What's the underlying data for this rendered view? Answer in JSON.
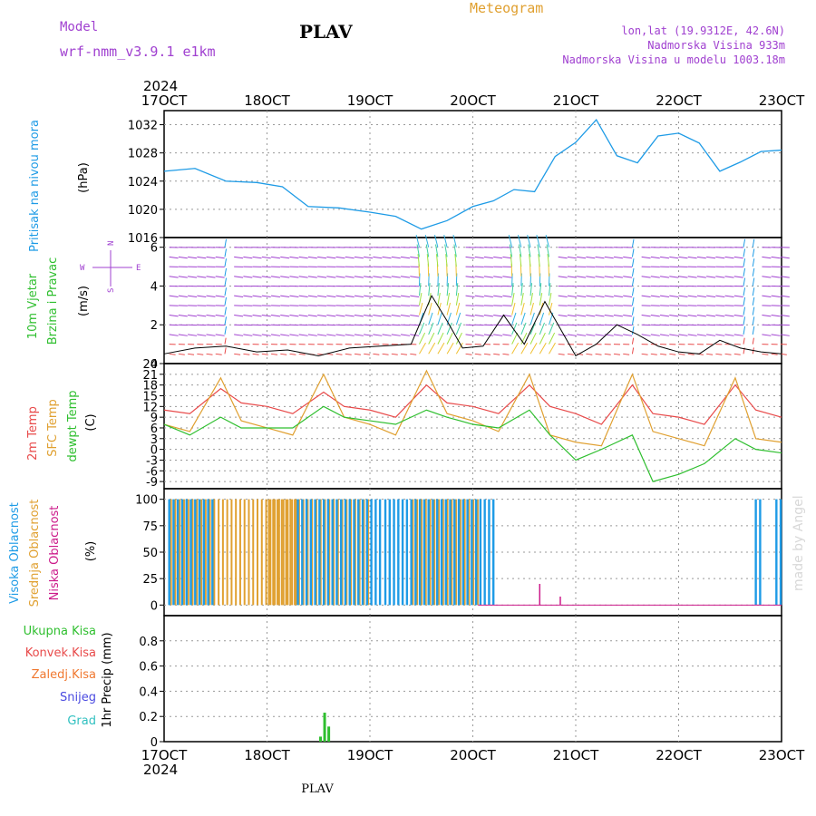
{
  "header": {
    "product": "Meteogram",
    "model_label": "Model",
    "model_name": "wrf-nmm_v3.9.1  e1km",
    "station": "PLAV",
    "lonlat": "lon,lat (19.9312E, 42.6N)",
    "altitude": "Nadmorska Visina 933m",
    "model_altitude": "Nadmorska Visina u modelu 1003.18m",
    "footer_station": "PLAV",
    "watermark": "made by Angel"
  },
  "colors": {
    "pressure": "#1e9be6",
    "temp2m": "#e84a4a",
    "sfc": "#e0a030",
    "dewpt": "#2fbf2f",
    "cloud_high": "#1e9be6",
    "cloud_mid": "#e0a030",
    "cloud_low": "#cc1a8a",
    "precip_total": "#2fbf2f",
    "purple": "#a040d0"
  },
  "time_axis": {
    "year": "2024",
    "ticks": [
      "17OCT",
      "18OCT",
      "19OCT",
      "20OCT",
      "21OCT",
      "22OCT",
      "23OCT"
    ]
  },
  "panel_labels": {
    "pressure": [
      "Pritisak na nivou mora",
      "(hPa)"
    ],
    "wind": [
      "10m Vjetar",
      "Brzina i Pravac",
      "(m/s)"
    ],
    "compass": {
      "n": "N",
      "e": "E",
      "w": "W",
      "s": "S"
    },
    "temp": [
      "2m Temp",
      "SFC Temp",
      "dewpt Temp",
      "(C)"
    ],
    "cloud": [
      "Visoka Oblacnost",
      "Srednja Oblacnost",
      "Niska Oblacnost",
      "(%)"
    ],
    "precip": [
      "Ukupna Kisa",
      "Konvek.Kisa",
      "Zaledj.Kisa",
      "Snijeg",
      "Grad"
    ],
    "precip_axis": "1hr Precip (mm)"
  },
  "chart_data": [
    {
      "type": "line",
      "series_name": "Pritisak na nivou mora",
      "ylabel": "(hPa)",
      "ylim": [
        1016,
        1034
      ],
      "yticks": [
        "1016",
        "1020",
        "1024",
        "1028",
        "1032"
      ],
      "x_days": [
        0,
        0.3,
        0.6,
        0.9,
        1.15,
        1.4,
        1.7,
        2.0,
        2.25,
        2.5,
        2.75,
        3.0,
        3.2,
        3.4,
        3.6,
        3.8,
        4.0,
        4.2,
        4.4,
        4.6,
        4.8,
        5.0,
        5.2,
        5.4,
        5.6,
        5.8,
        6.0
      ],
      "values": [
        1025.4,
        1025.8,
        1024.0,
        1023.8,
        1023.2,
        1020.4,
        1020.2,
        1019.6,
        1019.0,
        1017.2,
        1018.4,
        1020.4,
        1021.2,
        1022.8,
        1022.5,
        1027.5,
        1029.5,
        1032.7,
        1027.6,
        1026.6,
        1030.4,
        1030.8,
        1029.4,
        1025.4,
        1026.7,
        1028.2,
        1028.4
      ]
    },
    {
      "type": "line",
      "series_name": "10m Vjetar",
      "ylabel": "(m/s)",
      "ylim": [
        0,
        6.5
      ],
      "yticks": [
        "0",
        "2",
        "4",
        "6"
      ],
      "x_days": [
        0,
        0.3,
        0.6,
        0.9,
        1.2,
        1.5,
        1.8,
        2.1,
        2.4,
        2.6,
        2.75,
        2.9,
        3.1,
        3.3,
        3.5,
        3.7,
        3.85,
        4.0,
        4.2,
        4.4,
        4.6,
        4.8,
        5.0,
        5.2,
        5.4,
        5.6,
        5.8,
        6.0
      ],
      "values": [
        0.5,
        0.8,
        0.9,
        0.6,
        0.7,
        0.4,
        0.8,
        0.9,
        1.0,
        3.5,
        2.2,
        0.8,
        0.9,
        2.5,
        1.0,
        3.2,
        1.8,
        0.4,
        1.0,
        2.0,
        1.5,
        0.9,
        0.6,
        0.5,
        1.2,
        0.8,
        0.6,
        0.5
      ]
    },
    {
      "type": "line",
      "ylabel": "(C)",
      "ylim": [
        -11,
        24
      ],
      "yticks": [
        "24",
        "21",
        "18",
        "15",
        "12",
        "9",
        "6",
        "3",
        "0",
        "-3",
        "-6",
        "-9"
      ],
      "x_days": [
        0,
        0.25,
        0.55,
        0.75,
        1.0,
        1.25,
        1.55,
        1.75,
        2.0,
        2.25,
        2.55,
        2.75,
        3.0,
        3.25,
        3.55,
        3.75,
        4.0,
        4.25,
        4.55,
        4.75,
        5.0,
        5.25,
        5.55,
        5.75,
        6.0
      ],
      "series": [
        {
          "name": "2m Temp",
          "values": [
            11,
            10,
            17,
            13,
            12,
            10,
            16,
            12,
            11,
            9,
            18,
            13,
            12,
            10,
            18,
            12,
            10,
            7,
            18,
            10,
            9,
            7,
            18,
            11,
            9
          ]
        },
        {
          "name": "SFC Temp",
          "values": [
            7,
            5,
            20,
            8,
            6,
            4,
            21,
            9,
            7,
            4,
            22,
            10,
            8,
            5,
            21,
            4,
            2,
            1,
            21,
            5,
            3,
            1,
            20,
            3,
            2
          ]
        },
        {
          "name": "dewpt Temp",
          "values": [
            7,
            4,
            9,
            6,
            6,
            6,
            12,
            9,
            8,
            7,
            11,
            9,
            7,
            6,
            11,
            4,
            -3,
            0,
            4,
            -9,
            -7,
            -4,
            3,
            0,
            -1
          ]
        }
      ]
    },
    {
      "type": "bar",
      "ylabel": "(%)",
      "ylim": [
        0,
        100
      ],
      "yticks": [
        "0",
        "25",
        "50",
        "75",
        "100"
      ],
      "series": [
        {
          "name": "Visoka Oblacnost",
          "coverage_days": [
            [
              0.05,
              0.5
            ],
            [
              1.3,
              2.1
            ],
            [
              2.15,
              3.2
            ],
            [
              5.75,
              5.8
            ],
            [
              5.95,
              6.0
            ]
          ],
          "value": 100
        },
        {
          "name": "Srednja Oblacnost",
          "coverage_days": [
            [
              0.05,
              1.3
            ],
            [
              1.0,
              2.0
            ],
            [
              2.4,
              3.05
            ]
          ],
          "value": 100
        },
        {
          "name": "Niska Oblacnost",
          "spikes": [
            {
              "day": 3.65,
              "value": 20
            },
            {
              "day": 3.85,
              "value": 8
            }
          ]
        }
      ]
    },
    {
      "type": "bar",
      "ylabel": "1hr Precip (mm)",
      "ylim": [
        0,
        1.0
      ],
      "yticks": [
        "0",
        "0.2",
        "0.4",
        "0.6",
        "0.8"
      ],
      "series": [
        {
          "name": "Ukupna Kisa",
          "x_days": [
            1.52,
            1.56,
            1.6
          ],
          "values": [
            0.04,
            0.23,
            0.12
          ]
        }
      ]
    }
  ]
}
